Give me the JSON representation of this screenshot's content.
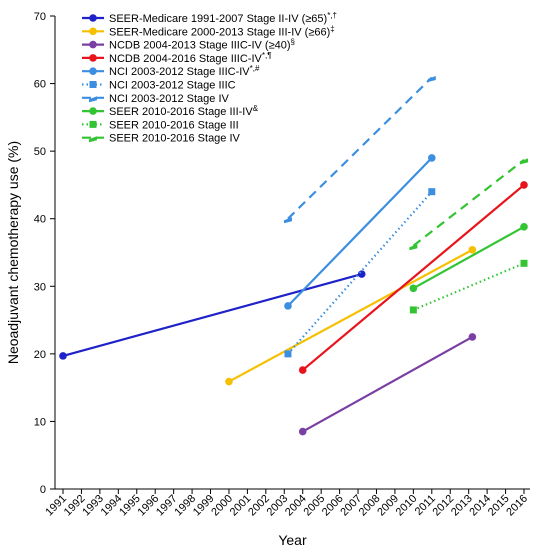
{
  "chart_data": {
    "type": "line",
    "xlabel": "Year",
    "ylabel": "Neoadjuvant chemotherapy use (%)",
    "ylim": [
      0,
      70
    ],
    "yticks": [
      0,
      10,
      20,
      30,
      40,
      50,
      60,
      70
    ],
    "xlim": [
      1991,
      2016
    ],
    "xticks": [
      1991,
      1992,
      1993,
      1994,
      1995,
      1996,
      1997,
      1998,
      1999,
      2000,
      2001,
      2002,
      2003,
      2004,
      2005,
      2006,
      2007,
      2008,
      2009,
      2010,
      2011,
      2012,
      2013,
      2014,
      2015,
      2016
    ],
    "grid": false,
    "legend_position": "top-left",
    "series": [
      {
        "name": "SEER-Medicare 1991-2007 Stage II-IV (≥65)",
        "sup": "*,†",
        "color": "#1f22c8",
        "dash": "solid",
        "marker": "circle",
        "points": [
          [
            1991,
            19.7
          ],
          [
            2007.2,
            31.8
          ]
        ]
      },
      {
        "name": "SEER-Medicare 2000-2013 Stage III-IV  (≥66)",
        "sup": "‡",
        "color": "#f5c000",
        "dash": "solid",
        "marker": "circle",
        "points": [
          [
            2000,
            15.9
          ],
          [
            2013.2,
            35.4
          ]
        ]
      },
      {
        "name": "NCDB 2004-2013 Stage IIIC-IV  (≥40)",
        "sup": "§",
        "color": "#7a3fa3",
        "dash": "solid",
        "marker": "circle",
        "points": [
          [
            2004,
            8.5
          ],
          [
            2013.2,
            22.5
          ]
        ]
      },
      {
        "name": "NCDB 2004-2016 Stage IIIC-IV",
        "sup": "*,¶",
        "color": "#e8141c",
        "dash": "solid",
        "marker": "circle",
        "points": [
          [
            2004,
            17.6
          ],
          [
            2016,
            45.0
          ]
        ]
      },
      {
        "name": "NCI 2003-2012 Stage IIIC-IV",
        "sup": "*,#",
        "color": "#3c8fe0",
        "dash": "solid",
        "marker": "circle",
        "points": [
          [
            2003.2,
            27.1
          ],
          [
            2011,
            49.0
          ]
        ]
      },
      {
        "name": "NCI 2003-2012 Stage IIIC",
        "sup": "",
        "color": "#3c8fe0",
        "dash": "dotted",
        "marker": "square",
        "points": [
          [
            2003.2,
            20.0
          ],
          [
            2011,
            44.0
          ]
        ]
      },
      {
        "name": "NCI 2003-2012 Stage IV",
        "sup": "",
        "color": "#3c8fe0",
        "dash": "dashed",
        "marker": "dash",
        "points": [
          [
            2003.2,
            40.0
          ],
          [
            2011,
            60.9
          ]
        ]
      },
      {
        "name": "SEER 2010-2016 Stage III-IV",
        "sup": "&",
        "color": "#33c433",
        "dash": "solid",
        "marker": "circle",
        "points": [
          [
            2010,
            29.7
          ],
          [
            2016,
            38.8
          ]
        ]
      },
      {
        "name": "SEER 2010-2016 Stage III",
        "sup": "",
        "color": "#33c433",
        "dash": "dotted",
        "marker": "square",
        "points": [
          [
            2010,
            26.5
          ],
          [
            2016,
            33.4
          ]
        ]
      },
      {
        "name": "SEER 2010-2016  Stage IV",
        "sup": "",
        "color": "#33c433",
        "dash": "dashed",
        "marker": "dash",
        "points": [
          [
            2010,
            36.0
          ],
          [
            2016,
            48.7
          ]
        ]
      }
    ]
  }
}
